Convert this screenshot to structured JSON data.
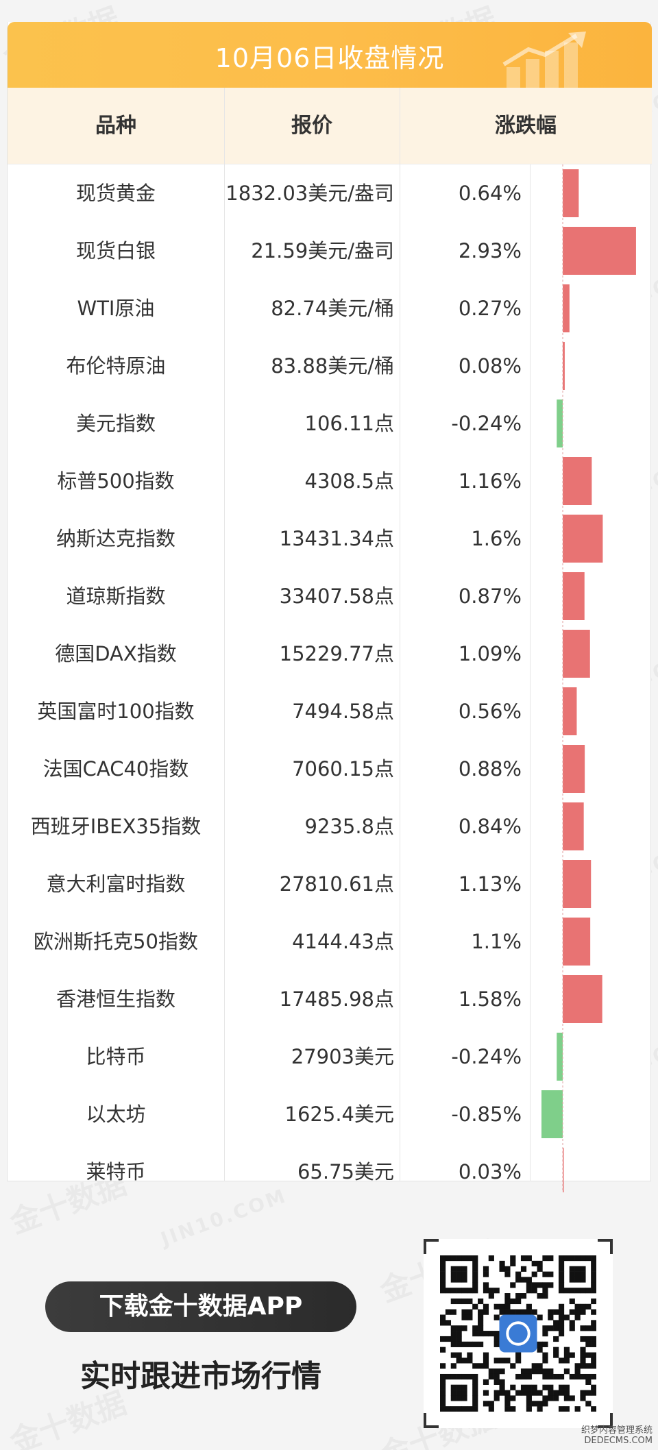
{
  "banner": {
    "title": "10月06日收盘情况"
  },
  "table": {
    "headers": {
      "name": "品种",
      "price": "报价",
      "change": "涨跌幅"
    }
  },
  "chart_data": {
    "type": "table",
    "columns": [
      "品种",
      "报价",
      "涨跌幅"
    ],
    "rows": [
      {
        "name": "现货黄金",
        "price": "1832.03美元/盎司",
        "pct_label": "0.64%",
        "pct": 0.64
      },
      {
        "name": "现货白银",
        "price": "21.59美元/盎司",
        "pct_label": "2.93%",
        "pct": 2.93
      },
      {
        "name": "WTI原油",
        "price": "82.74美元/桶",
        "pct_label": "0.27%",
        "pct": 0.27
      },
      {
        "name": "布伦特原油",
        "price": "83.88美元/桶",
        "pct_label": "0.08%",
        "pct": 0.08
      },
      {
        "name": "美元指数",
        "price": "106.11点",
        "pct_label": "-0.24%",
        "pct": -0.24
      },
      {
        "name": "标普500指数",
        "price": "4308.5点",
        "pct_label": "1.16%",
        "pct": 1.16
      },
      {
        "name": "纳斯达克指数",
        "price": "13431.34点",
        "pct_label": "1.6%",
        "pct": 1.6
      },
      {
        "name": "道琼斯指数",
        "price": "33407.58点",
        "pct_label": "0.87%",
        "pct": 0.87
      },
      {
        "name": "德国DAX指数",
        "price": "15229.77点",
        "pct_label": "1.09%",
        "pct": 1.09
      },
      {
        "name": "英国富时100指数",
        "price": "7494.58点",
        "pct_label": "0.56%",
        "pct": 0.56
      },
      {
        "name": "法国CAC40指数",
        "price": "7060.15点",
        "pct_label": "0.88%",
        "pct": 0.88
      },
      {
        "name": "西班牙IBEX35指数",
        "price": "9235.8点",
        "pct_label": "0.84%",
        "pct": 0.84
      },
      {
        "name": "意大利富时指数",
        "price": "27810.61点",
        "pct_label": "1.13%",
        "pct": 1.13
      },
      {
        "name": "欧洲斯托克50指数",
        "price": "4144.43点",
        "pct_label": "1.1%",
        "pct": 1.1
      },
      {
        "name": "香港恒生指数",
        "price": "17485.98点",
        "pct_label": "1.58%",
        "pct": 1.58
      },
      {
        "name": "比特币",
        "price": "27903美元",
        "pct_label": "-0.24%",
        "pct": -0.24
      },
      {
        "name": "以太坊",
        "price": "1625.4美元",
        "pct_label": "-0.85%",
        "pct": -0.85
      },
      {
        "name": "莱特币",
        "price": "65.75美元",
        "pct_label": "0.03%",
        "pct": 0.03
      }
    ],
    "colors": {
      "up": "#e87373",
      "down": "#7fcf8a"
    }
  },
  "promo": {
    "download_label": "下载金十数据APP",
    "slogan": "实时跟进市场行情",
    "qr_icon": "qr-code-icon"
  },
  "watermark": {
    "cn": "金十数据",
    "en": "JIN10.COM"
  },
  "footer": {
    "line1": "织梦内容管理系统",
    "line2": "DEDECMS.COM"
  }
}
